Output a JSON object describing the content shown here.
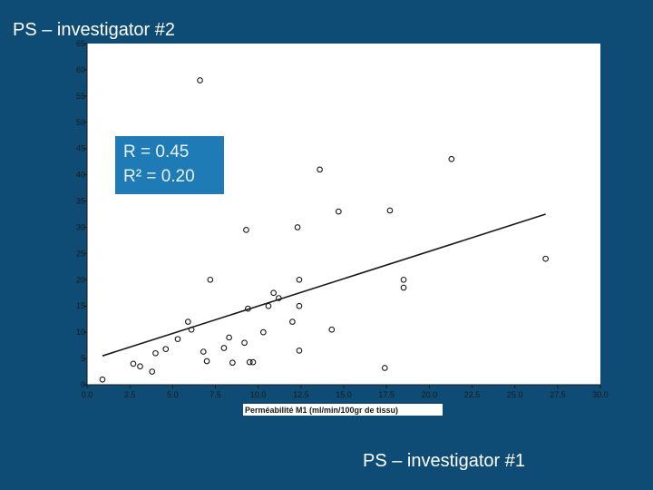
{
  "slide": {
    "title": "PS – investigator #2",
    "footer": "PS – investigator #1"
  },
  "stats": {
    "r": "R = 0.45",
    "r2": "R² = 0.20"
  },
  "colors": {
    "background": "#0e4c75",
    "plot_area": "#ffffff",
    "stat_box": "#1f7bb5",
    "points": "#1a1a1a"
  },
  "chart_data": {
    "type": "scatter",
    "title": "",
    "xlabel": "Perméabilité M1 (ml/min/100gr de tissu)",
    "ylabel": "",
    "xlim": [
      0,
      30
    ],
    "ylim": [
      0,
      65
    ],
    "x_ticks": [
      0,
      2.5,
      5,
      7.5,
      10,
      12.5,
      15,
      17.5,
      20,
      22.5,
      25,
      27.5,
      30
    ],
    "x_tick_labels": [
      "0.0",
      "2.5",
      "5.0",
      "7.5",
      "10.0",
      "12.5",
      "15.0",
      "17.5",
      "20.0",
      "22.5",
      "25.0",
      "27.5",
      "30.0"
    ],
    "y_ticks": [
      0,
      5,
      10,
      15,
      20,
      25,
      30,
      35,
      40,
      45,
      50,
      55,
      60,
      65
    ],
    "y_tick_labels": [
      "0",
      "5",
      "10",
      "15",
      "20",
      "25",
      "30",
      "35",
      "40",
      "45",
      "50",
      "55",
      "60",
      "65"
    ],
    "grid": false,
    "points": [
      {
        "x": 0.9,
        "y": 1
      },
      {
        "x": 2.7,
        "y": 4
      },
      {
        "x": 3.1,
        "y": 3.5
      },
      {
        "x": 3.8,
        "y": 2.5
      },
      {
        "x": 4.0,
        "y": 6
      },
      {
        "x": 4.6,
        "y": 6.8
      },
      {
        "x": 5.3,
        "y": 8.7
      },
      {
        "x": 5.9,
        "y": 12
      },
      {
        "x": 6.1,
        "y": 10.5
      },
      {
        "x": 6.6,
        "y": 58
      },
      {
        "x": 6.8,
        "y": 6.3
      },
      {
        "x": 7.0,
        "y": 4.5
      },
      {
        "x": 7.2,
        "y": 20
      },
      {
        "x": 8.0,
        "y": 7
      },
      {
        "x": 8.3,
        "y": 9
      },
      {
        "x": 8.5,
        "y": 4.2
      },
      {
        "x": 9.2,
        "y": 8
      },
      {
        "x": 9.3,
        "y": 29.5
      },
      {
        "x": 9.4,
        "y": 14.5
      },
      {
        "x": 9.5,
        "y": 4.3
      },
      {
        "x": 9.7,
        "y": 4.3
      },
      {
        "x": 10.3,
        "y": 10
      },
      {
        "x": 10.6,
        "y": 15
      },
      {
        "x": 10.9,
        "y": 17.5
      },
      {
        "x": 11.2,
        "y": 16.5
      },
      {
        "x": 12.0,
        "y": 12
      },
      {
        "x": 12.3,
        "y": 30
      },
      {
        "x": 12.4,
        "y": 20
      },
      {
        "x": 12.4,
        "y": 15
      },
      {
        "x": 12.4,
        "y": 6.5
      },
      {
        "x": 13.6,
        "y": 41
      },
      {
        "x": 14.3,
        "y": 10.5
      },
      {
        "x": 14.7,
        "y": 33
      },
      {
        "x": 17.4,
        "y": 3.2
      },
      {
        "x": 17.7,
        "y": 33.2
      },
      {
        "x": 18.5,
        "y": 20
      },
      {
        "x": 18.5,
        "y": 18.5
      },
      {
        "x": 21.3,
        "y": 43
      },
      {
        "x": 26.8,
        "y": 24
      }
    ],
    "trendline": {
      "x": [
        0.9,
        26.8
      ],
      "y": [
        5.5,
        32.5
      ]
    }
  }
}
